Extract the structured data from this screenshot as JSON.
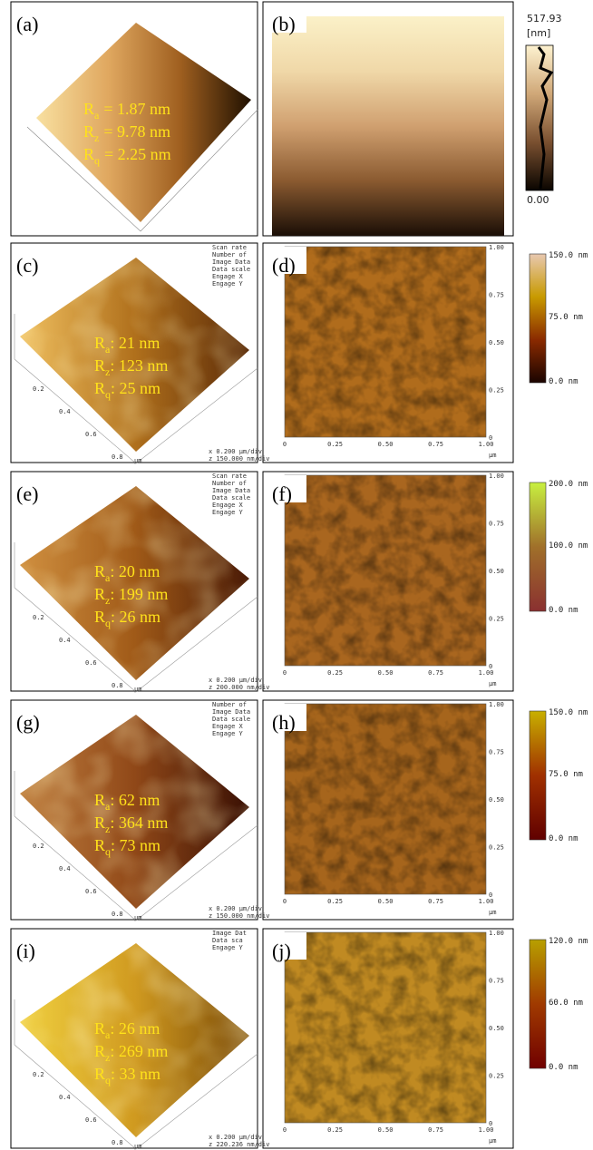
{
  "axis2d": {
    "xticks": [
      "0",
      "0.25",
      "0.50",
      "0.75",
      "1.00"
    ],
    "yticks": [
      "1.00",
      "0.75",
      "0.50",
      "0.25",
      "0"
    ],
    "unit": "µm"
  },
  "axis3d": {
    "ticks": [
      "0.2",
      "0.4",
      "0.6",
      "0.8"
    ],
    "unit": "µm"
  },
  "panels": [
    {
      "label3d": "(a)",
      "label2d": "(b)",
      "roughness": [
        {
          "symbol": "R",
          "sub": "a",
          "text": "= 1.87 nm"
        },
        {
          "symbol": "R",
          "sub": "z",
          "text": "= 9.78 nm"
        },
        {
          "symbol": "R",
          "sub": "q",
          "text": "= 2.25 nm"
        }
      ],
      "colorbar": [
        "517.93",
        "[nm]",
        "0.00"
      ]
    },
    {
      "label3d": "(c)",
      "label2d": "(d)",
      "roughness": [
        {
          "symbol": "R",
          "sub": "a",
          "text": ": 21 nm"
        },
        {
          "symbol": "R",
          "sub": "z",
          "text": ": 123 nm"
        },
        {
          "symbol": "R",
          "sub": "q",
          "text": ": 25 nm"
        }
      ],
      "info": [
        "Scan rate",
        "Number of",
        "Image Data",
        "Data scale",
        "Engage X",
        "Engage Y"
      ],
      "scale_notes": [
        "x 0.200 µm/div",
        "z 150.000 nm/div"
      ],
      "colorbar": [
        "150.0 nm",
        "75.0 nm",
        "0.0 nm"
      ]
    },
    {
      "label3d": "(e)",
      "label2d": "(f)",
      "roughness": [
        {
          "symbol": "R",
          "sub": "a",
          "text": ": 20 nm"
        },
        {
          "symbol": "R",
          "sub": "z",
          "text": ": 199 nm"
        },
        {
          "symbol": "R",
          "sub": "q",
          "text": ": 26 nm"
        }
      ],
      "info": [
        "Scan rate",
        "Number of",
        "Image Data",
        "Data scale",
        "Engage X",
        "Engage Y"
      ],
      "scale_notes": [
        "x 0.200 µm/div",
        "z 200.000 nm/div"
      ],
      "colorbar": [
        "200.0 nm",
        "100.0 nm",
        "0.0 nm"
      ]
    },
    {
      "label3d": "(g)",
      "label2d": "(h)",
      "roughness": [
        {
          "symbol": "R",
          "sub": "a",
          "text": ": 62 nm"
        },
        {
          "symbol": "R",
          "sub": "z",
          "text": ": 364 nm"
        },
        {
          "symbol": "R",
          "sub": "q",
          "text": ": 73 nm"
        }
      ],
      "info": [
        "Number of",
        "Image Data",
        "Data scale",
        "Engage X",
        "Engage Y"
      ],
      "scale_notes": [
        "x 0.200 µm/div",
        "z 150.000 nm/div"
      ],
      "colorbar": [
        "150.0 nm",
        "75.0 nm",
        "0.0 nm"
      ]
    },
    {
      "label3d": "(i)",
      "label2d": "(j)",
      "roughness": [
        {
          "symbol": "R",
          "sub": "a",
          "text": ": 26 nm"
        },
        {
          "symbol": "R",
          "sub": "z",
          "text": ": 269 nm"
        },
        {
          "symbol": "R",
          "sub": "q",
          "text": ": 33 nm"
        }
      ],
      "info": [
        "Image Dat",
        "Data sca",
        "Engage Y"
      ],
      "scale_notes": [
        "x 0.200 µm/div",
        "z 220.236 nm/div"
      ],
      "colorbar": [
        "120.0 nm",
        "60.0 nm",
        "0.0 nm"
      ]
    }
  ]
}
